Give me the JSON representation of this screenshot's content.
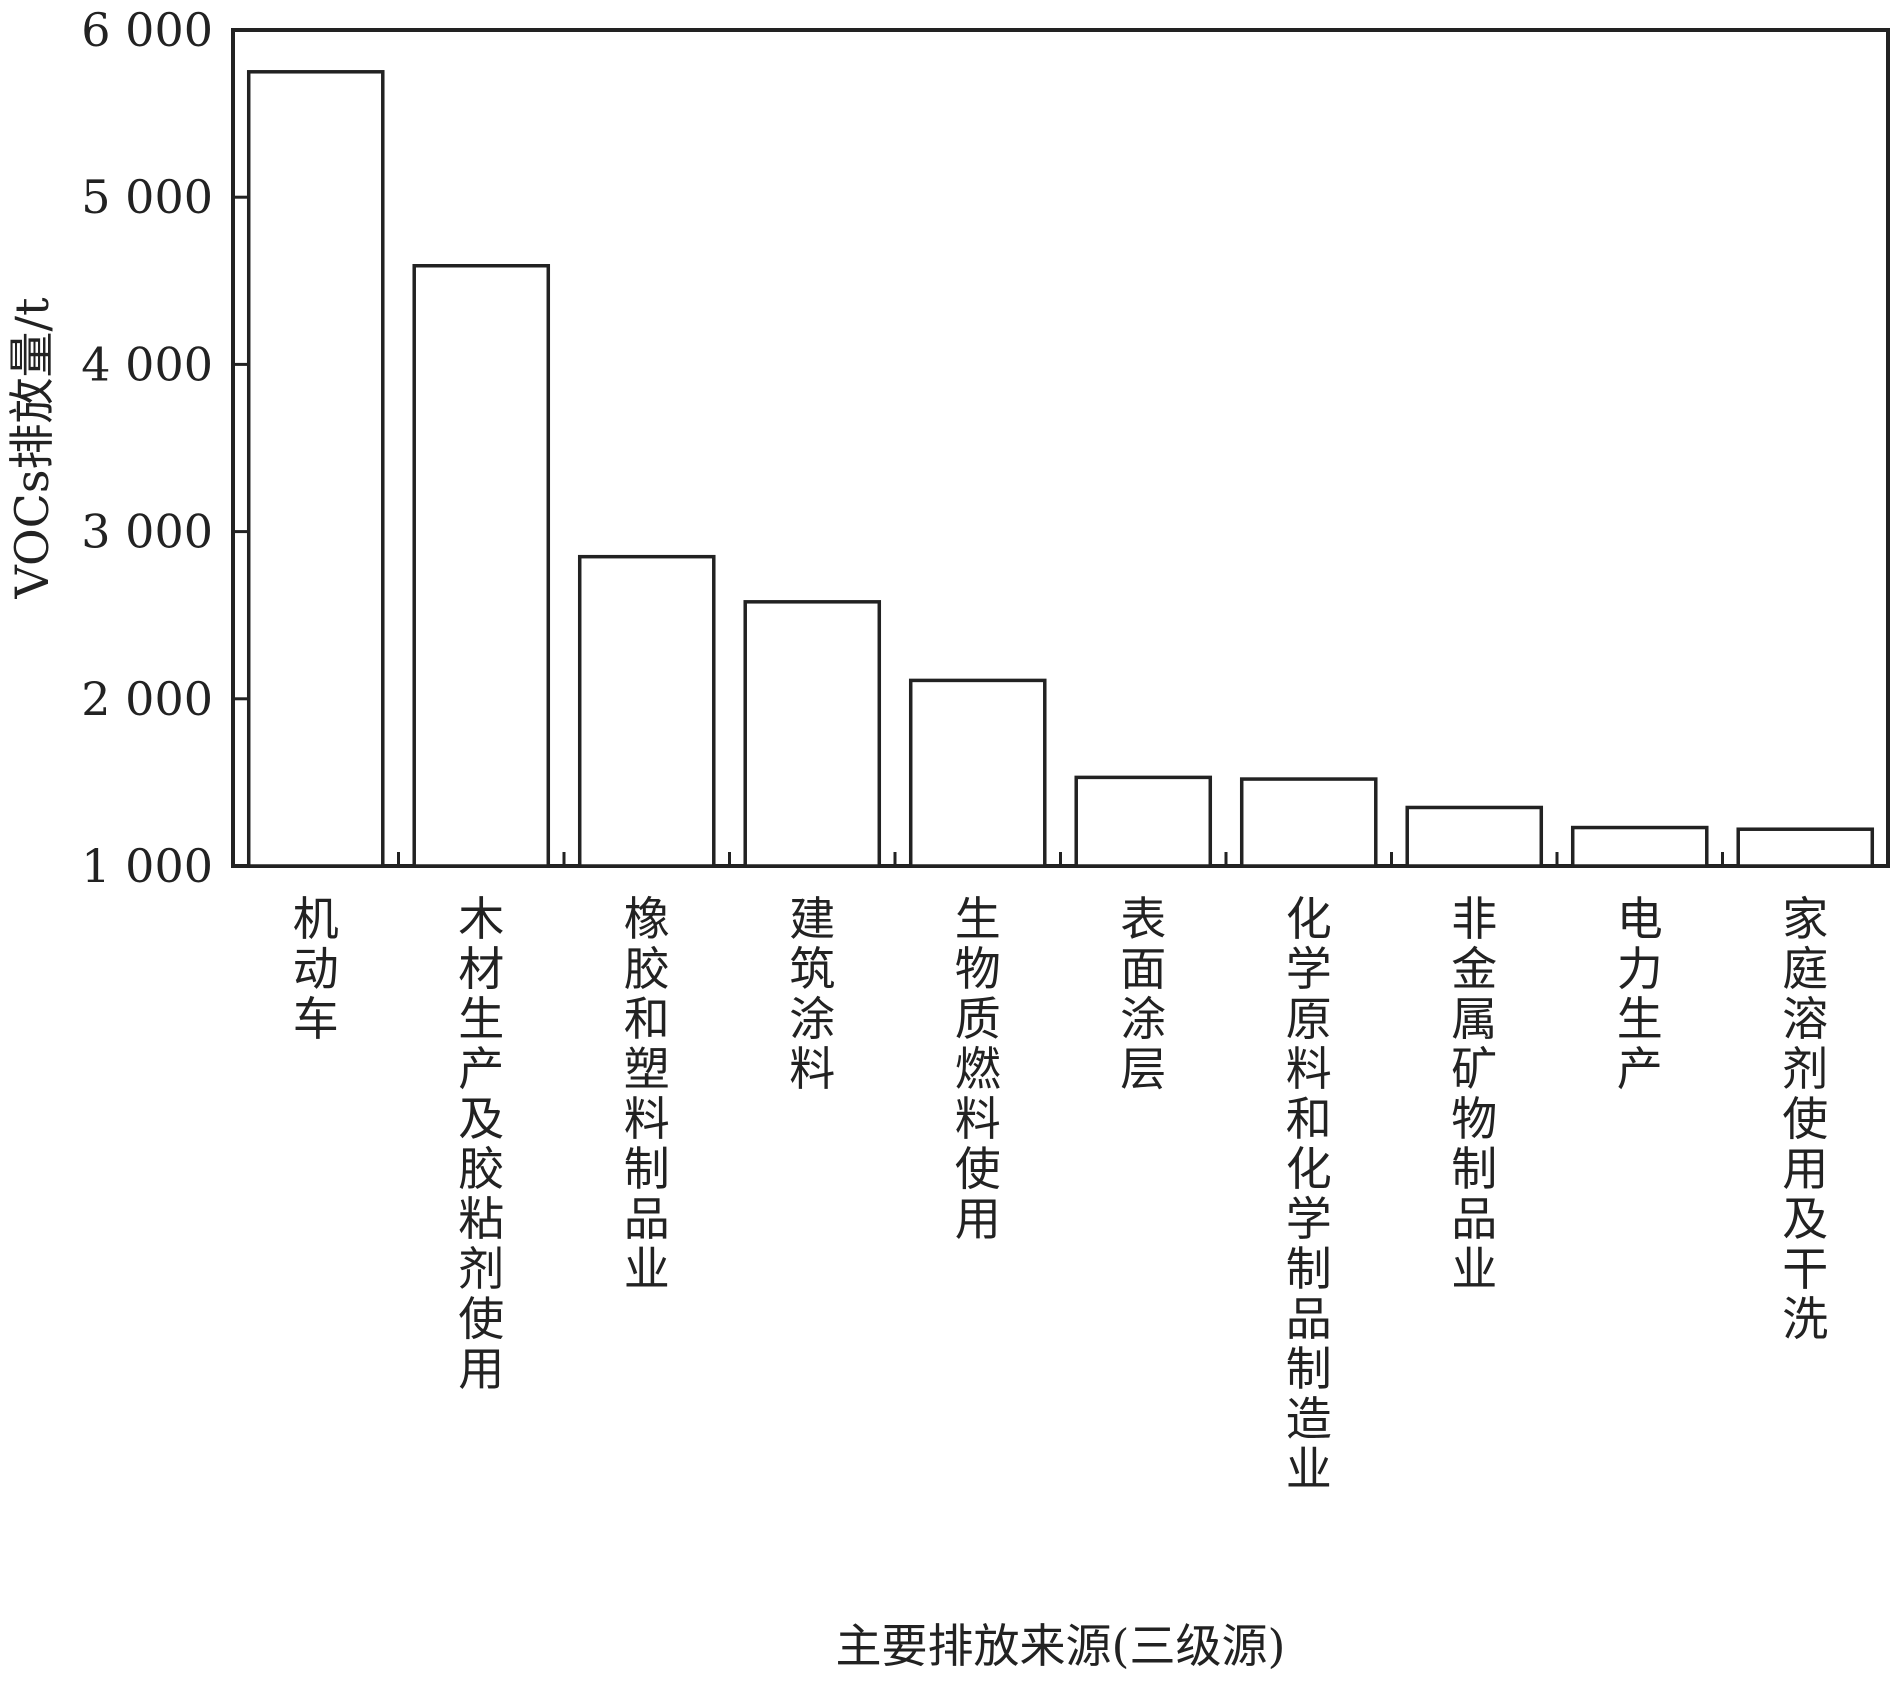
{
  "chart_data": {
    "type": "bar",
    "title": "",
    "xlabel": "主要排放来源(三级源)",
    "ylabel": "VOCs排放量/t",
    "ylim": [
      1000,
      6000
    ],
    "yticks": [
      1000,
      2000,
      3000,
      4000,
      5000,
      6000
    ],
    "ytick_labels": [
      "1 000",
      "2 000",
      "3 000",
      "4 000",
      "5 000",
      "6 000"
    ],
    "categories": [
      "机动车",
      "木材生产及胶粘剂使用",
      "橡胶和塑料制品业",
      "建筑涂料",
      "生物质燃料使用",
      "表面涂层",
      "化学原料和化学制品制造业",
      "非金属矿物制品业",
      "电力生产",
      "家庭溶剂使用及干洗"
    ],
    "values": [
      5750,
      4590,
      2850,
      2580,
      2110,
      1530,
      1520,
      1350,
      1230,
      1220
    ],
    "grid": false,
    "legend": "none",
    "bar_fill": "#ffffff",
    "bar_stroke": "#222222"
  }
}
